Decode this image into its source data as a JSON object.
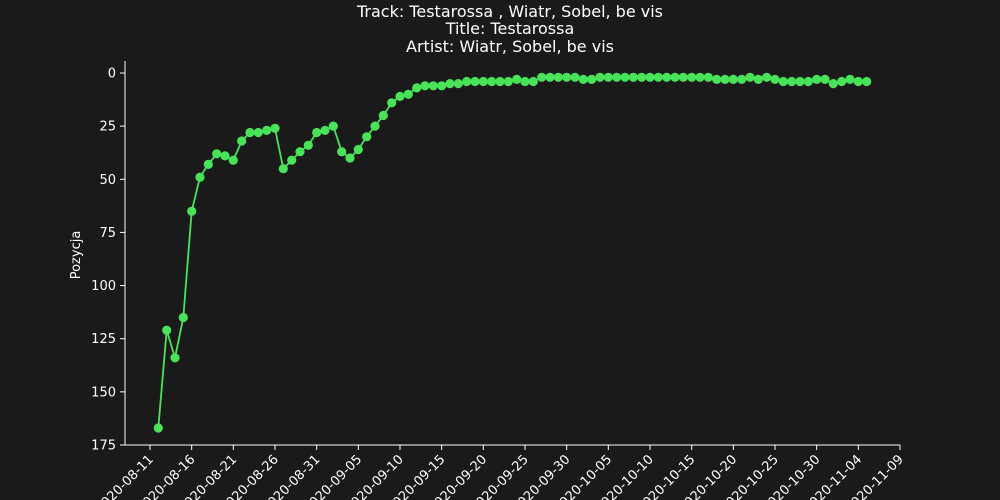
{
  "chart_data": {
    "type": "line",
    "title_lines": [
      "Track:  Testarossa , Wiatr, Sobel, be vis",
      "Title:  Testarossa",
      "Artist:  Wiatr, Sobel, be vis"
    ],
    "xlabel": "",
    "ylabel": "Pozycja",
    "y_inverted": true,
    "ylim": [
      0,
      175
    ],
    "yticks": [
      0,
      25,
      50,
      75,
      100,
      125,
      150,
      175
    ],
    "x_start": "2020-08-08",
    "x_end": "2020-11-09",
    "xticks": [
      "2020-08-11",
      "2020-08-16",
      "2020-08-21",
      "2020-08-26",
      "2020-08-31",
      "2020-09-05",
      "2020-09-10",
      "2020-09-15",
      "2020-09-20",
      "2020-09-25",
      "2020-09-30",
      "2020-10-05",
      "2020-10-10",
      "2020-10-15",
      "2020-10-20",
      "2020-10-25",
      "2020-10-30",
      "2020-11-04",
      "2020-11-09"
    ],
    "line_color": "#49e35a",
    "grid": false,
    "series": [
      {
        "name": "",
        "x": [
          "2020-08-12",
          "2020-08-13",
          "2020-08-14",
          "2020-08-15",
          "2020-08-16",
          "2020-08-17",
          "2020-08-18",
          "2020-08-19",
          "2020-08-20",
          "2020-08-21",
          "2020-08-22",
          "2020-08-23",
          "2020-08-24",
          "2020-08-25",
          "2020-08-26",
          "2020-08-27",
          "2020-08-28",
          "2020-08-29",
          "2020-08-30",
          "2020-08-31",
          "2020-09-01",
          "2020-09-02",
          "2020-09-03",
          "2020-09-04",
          "2020-09-05",
          "2020-09-06",
          "2020-09-07",
          "2020-09-08",
          "2020-09-09",
          "2020-09-10",
          "2020-09-11",
          "2020-09-12",
          "2020-09-13",
          "2020-09-14",
          "2020-09-15",
          "2020-09-16",
          "2020-09-17",
          "2020-09-18",
          "2020-09-19",
          "2020-09-20",
          "2020-09-21",
          "2020-09-22",
          "2020-09-23",
          "2020-09-24",
          "2020-09-25",
          "2020-09-26",
          "2020-09-27",
          "2020-09-28",
          "2020-09-29",
          "2020-09-30",
          "2020-10-01",
          "2020-10-02",
          "2020-10-03",
          "2020-10-04",
          "2020-10-05",
          "2020-10-06",
          "2020-10-07",
          "2020-10-08",
          "2020-10-09",
          "2020-10-10",
          "2020-10-11",
          "2020-10-12",
          "2020-10-13",
          "2020-10-14",
          "2020-10-15",
          "2020-10-16",
          "2020-10-17",
          "2020-10-18",
          "2020-10-19",
          "2020-10-20",
          "2020-10-21",
          "2020-10-22",
          "2020-10-23",
          "2020-10-24",
          "2020-10-25",
          "2020-10-26",
          "2020-10-27",
          "2020-10-28",
          "2020-10-29",
          "2020-10-30",
          "2020-10-31",
          "2020-11-01",
          "2020-11-02",
          "2020-11-03",
          "2020-11-04",
          "2020-11-05"
        ],
        "y": [
          167,
          121,
          134,
          115,
          65,
          49,
          43,
          38,
          39,
          41,
          32,
          28,
          28,
          27,
          26,
          45,
          41,
          37,
          34,
          28,
          27,
          25,
          37,
          40,
          36,
          30,
          25,
          20,
          14,
          11,
          10,
          7,
          6,
          6,
          6,
          5,
          5,
          4,
          4,
          4,
          4,
          4,
          4,
          3,
          4,
          4,
          2,
          2,
          2,
          2,
          2,
          3,
          3,
          2,
          2,
          2,
          2,
          2,
          2,
          2,
          2,
          2,
          2,
          2,
          2,
          2,
          2,
          3,
          3,
          3,
          3,
          2,
          3,
          2,
          3,
          4,
          4,
          4,
          4,
          3,
          3,
          5,
          4,
          3,
          4,
          4
        ]
      }
    ]
  }
}
